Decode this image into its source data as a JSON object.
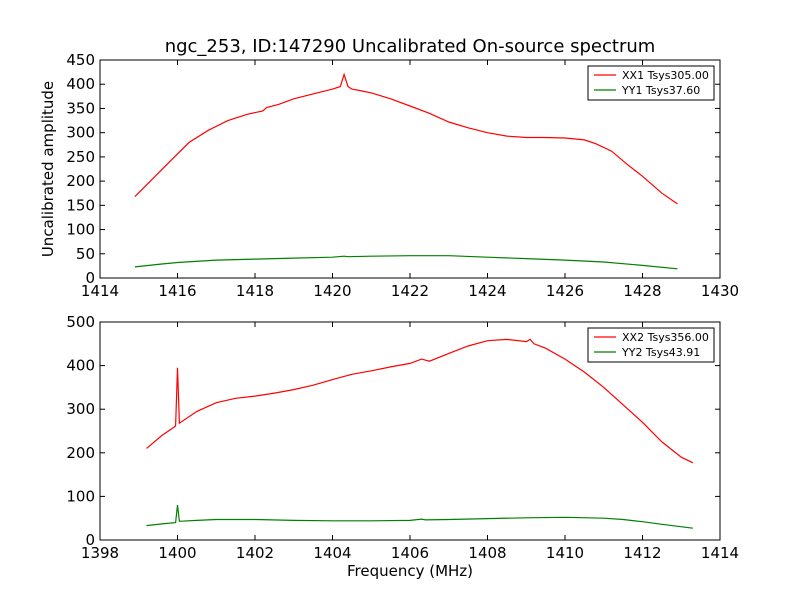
{
  "chart_data": [
    {
      "type": "line",
      "title": "ngc_253, ID:147290 Uncalibrated On-source spectrum",
      "xlabel": "",
      "ylabel": "Uncalibrated amplitude",
      "xlim": [
        1414,
        1430
      ],
      "ylim": [
        0,
        450
      ],
      "xticks": [
        1414,
        1416,
        1418,
        1420,
        1422,
        1424,
        1426,
        1428,
        1430
      ],
      "yticks": [
        0,
        50,
        100,
        150,
        200,
        250,
        300,
        350,
        400,
        450
      ],
      "legend_position": "top-right",
      "series": [
        {
          "name": "XX1 Tsys305.00",
          "color": "#ff0000",
          "x": [
            1414.9,
            1415.3,
            1415.8,
            1416.3,
            1416.8,
            1417.3,
            1417.8,
            1418.2,
            1418.3,
            1418.6,
            1419.0,
            1419.5,
            1420.0,
            1420.2,
            1420.3,
            1420.4,
            1420.5,
            1420.7,
            1421.0,
            1421.5,
            1422.0,
            1422.5,
            1423.0,
            1423.5,
            1424.0,
            1424.5,
            1425.0,
            1425.5,
            1426.0,
            1426.5,
            1426.8,
            1427.2,
            1427.6,
            1428.0,
            1428.5,
            1428.9
          ],
          "y": [
            168,
            200,
            240,
            280,
            305,
            325,
            338,
            345,
            352,
            358,
            370,
            380,
            390,
            395,
            420,
            395,
            390,
            387,
            382,
            370,
            355,
            340,
            322,
            310,
            300,
            293,
            290,
            290,
            289,
            285,
            277,
            262,
            235,
            210,
            175,
            153
          ]
        },
        {
          "name": "YY1 Tsys37.60",
          "color": "#008000",
          "x": [
            1414.9,
            1415.5,
            1416.0,
            1417.0,
            1418.0,
            1419.0,
            1420.0,
            1420.3,
            1420.4,
            1421.0,
            1422.0,
            1423.0,
            1424.0,
            1425.0,
            1426.0,
            1427.0,
            1428.0,
            1428.9
          ],
          "y": [
            23,
            28,
            32,
            37,
            39,
            41,
            43,
            45,
            44,
            45,
            46,
            46,
            43,
            40,
            37,
            33,
            26,
            19
          ]
        }
      ]
    },
    {
      "type": "line",
      "title": "",
      "xlabel": "Frequency (MHz)",
      "ylabel": "",
      "xlim": [
        1398,
        1414
      ],
      "ylim": [
        0,
        500
      ],
      "xticks": [
        1398,
        1400,
        1402,
        1404,
        1406,
        1408,
        1410,
        1412,
        1414
      ],
      "yticks": [
        0,
        100,
        200,
        300,
        400,
        500
      ],
      "legend_position": "top-right",
      "series": [
        {
          "name": "XX2 Tsys356.00",
          "color": "#ff0000",
          "x": [
            1399.2,
            1399.6,
            1399.9,
            1399.95,
            1400.0,
            1400.05,
            1400.5,
            1401.0,
            1401.5,
            1402.0,
            1402.5,
            1403.0,
            1403.5,
            1404.0,
            1404.5,
            1405.0,
            1405.5,
            1406.0,
            1406.3,
            1406.5,
            1407.0,
            1407.5,
            1408.0,
            1408.5,
            1409.0,
            1409.1,
            1409.2,
            1409.5,
            1410.0,
            1410.5,
            1411.0,
            1411.5,
            1412.0,
            1412.5,
            1413.0,
            1413.3
          ],
          "y": [
            210,
            240,
            258,
            262,
            395,
            268,
            295,
            315,
            325,
            330,
            337,
            345,
            355,
            368,
            380,
            388,
            397,
            405,
            415,
            410,
            428,
            445,
            457,
            460,
            455,
            460,
            450,
            440,
            415,
            385,
            350,
            310,
            270,
            225,
            190,
            177
          ]
        },
        {
          "name": "YY2 Tsys43.91",
          "color": "#008000",
          "x": [
            1399.2,
            1399.6,
            1399.95,
            1400.0,
            1400.05,
            1400.5,
            1401.0,
            1402.0,
            1403.0,
            1404.0,
            1405.0,
            1406.0,
            1406.3,
            1406.4,
            1407.0,
            1408.0,
            1409.0,
            1410.0,
            1411.0,
            1411.5,
            1412.0,
            1412.5,
            1413.3
          ],
          "y": [
            33,
            37,
            40,
            80,
            43,
            45,
            47,
            47,
            45,
            44,
            44,
            45,
            48,
            46,
            47,
            49,
            51,
            52,
            50,
            47,
            42,
            36,
            27
          ]
        }
      ]
    }
  ]
}
